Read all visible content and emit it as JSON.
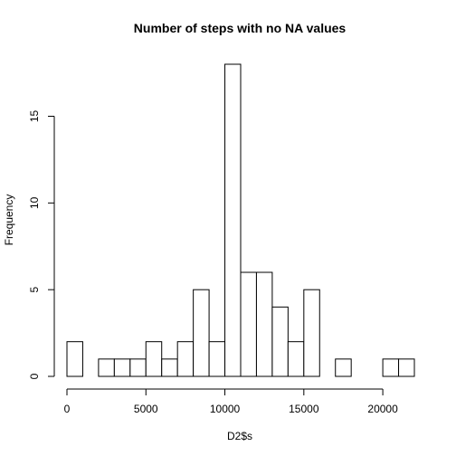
{
  "chart_data": {
    "type": "bar",
    "title": "Number of steps with no NA values",
    "xlabel": "D2$s",
    "ylabel": "Frequency",
    "bin_width": 1000,
    "bins_start": [
      0,
      1000,
      2000,
      3000,
      4000,
      5000,
      6000,
      7000,
      8000,
      9000,
      10000,
      11000,
      12000,
      13000,
      14000,
      15000,
      16000,
      17000,
      18000,
      19000,
      20000,
      21000
    ],
    "values": [
      2,
      0,
      1,
      1,
      1,
      2,
      1,
      2,
      5,
      2,
      18,
      6,
      6,
      4,
      2,
      5,
      0,
      1,
      0,
      0,
      1,
      1
    ],
    "xlim": [
      0,
      22000
    ],
    "ylim": [
      0,
      18
    ],
    "x_ticks": [
      0,
      5000,
      10000,
      15000,
      20000
    ],
    "x_tick_labels": [
      "0",
      "5000",
      "10000",
      "15000",
      "20000"
    ],
    "y_ticks": [
      0,
      5,
      10,
      15
    ],
    "y_tick_labels": [
      "0",
      "5",
      "10",
      "15"
    ],
    "grid": false,
    "bar_fill": "#ffffff",
    "bar_stroke": "#000000"
  }
}
